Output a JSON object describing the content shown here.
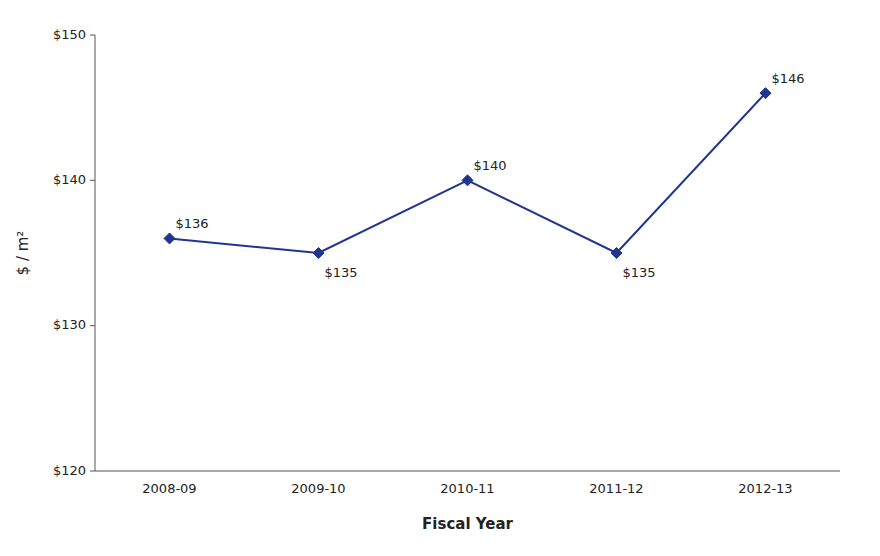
{
  "chart_data": {
    "type": "line",
    "categories": [
      "2008-09",
      "2009-10",
      "2010-11",
      "2011-12",
      "2012-13"
    ],
    "values": [
      136,
      135,
      140,
      135,
      146
    ],
    "value_labels": [
      "$136",
      "$135",
      "$140",
      "$135",
      "$146"
    ],
    "data_labels": true,
    "color": "#1F3591",
    "marker": "diamond",
    "line_style": "solid",
    "xlabel": "Fiscal Year",
    "ylabel": "$ / m²",
    "ylim": [
      120,
      150
    ],
    "yticks": [
      {
        "value": 120,
        "label": "$120"
      },
      {
        "value": 130,
        "label": "$130"
      },
      {
        "value": 140,
        "label": "$140"
      },
      {
        "value": 150,
        "label": "$150"
      }
    ],
    "grid": false
  }
}
